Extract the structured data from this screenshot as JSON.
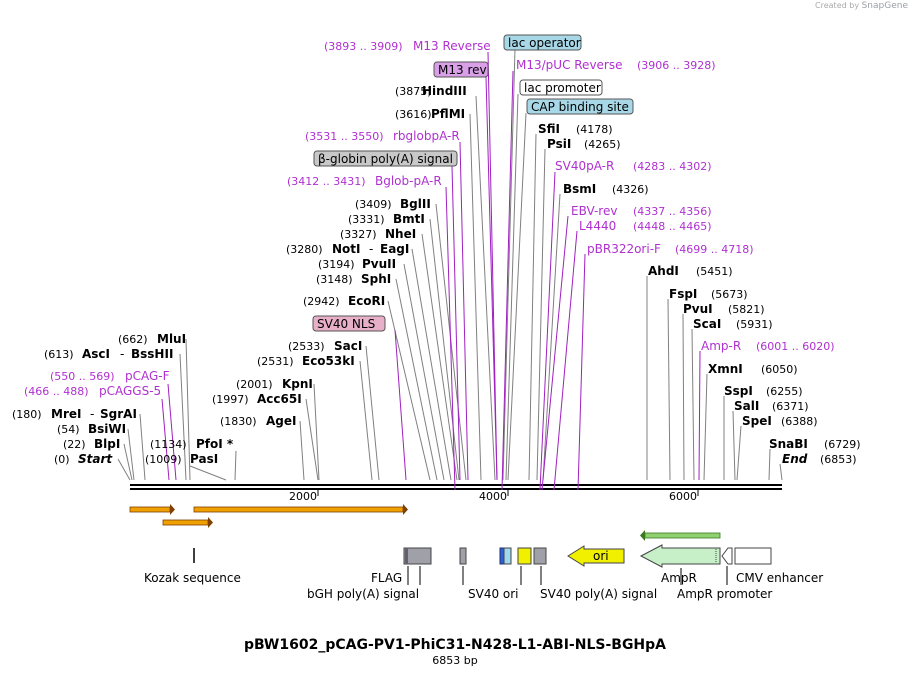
{
  "credit": {
    "prefix": "Created by",
    "brand": "SnapGene"
  },
  "title": "pBW1602_pCAG-PV1-PhiC31-N428-L1-ABI-NLS-BGHpA",
  "length_label": "6853 bp",
  "ruler_ticks": [
    "2000",
    "4000",
    "6000"
  ],
  "colors": {
    "enzyme": "#000000",
    "primer": "#b030d0",
    "feature_label": "#000000"
  },
  "sites_left": [
    {
      "name": "M13 Reverse",
      "range": "(3893 .. 3909)",
      "kind": "primer"
    },
    {
      "name": "M13 rev",
      "kind": "box",
      "fill": "#d9a0e8"
    },
    {
      "name": "HindIII",
      "pos": "(3875)",
      "kind": "enzyme"
    },
    {
      "name": "PflMI",
      "pos": "(3616)",
      "kind": "enzyme"
    },
    {
      "name": "rbglobpA-R",
      "range": "(3531 .. 3550)",
      "kind": "primer"
    },
    {
      "name": "β-globin poly(A) signal",
      "kind": "box",
      "fill": "#c8c8c8"
    },
    {
      "name": "Bglob-pA-R",
      "range": "(3412 .. 3431)",
      "kind": "primer"
    },
    {
      "name": "BglII",
      "pos": "(3409)",
      "kind": "enzyme"
    },
    {
      "name": "BmtI",
      "pos": "(3331)",
      "kind": "enzyme"
    },
    {
      "name": "NheI",
      "pos": "(3327)",
      "kind": "enzyme"
    },
    {
      "name": "NotI",
      "extra": "EagI",
      "pos": "(3280)",
      "kind": "enzyme"
    },
    {
      "name": "PvuII",
      "pos": "(3194)",
      "kind": "enzyme"
    },
    {
      "name": "SphI",
      "pos": "(3148)",
      "kind": "enzyme"
    },
    {
      "name": "EcoRI",
      "pos": "(2942)",
      "kind": "enzyme"
    },
    {
      "name": "SV40 NLS",
      "kind": "box",
      "fill": "#e8b0c8"
    },
    {
      "name": "SacI",
      "pos": "(2533)",
      "kind": "enzyme"
    },
    {
      "name": "Eco53kI",
      "pos": "(2531)",
      "kind": "enzyme"
    },
    {
      "name": "MluI",
      "pos": "(662)",
      "kind": "enzyme"
    },
    {
      "name": "AscI",
      "extra": "BssHII",
      "pos": "(613)",
      "kind": "enzyme"
    },
    {
      "name": "KpnI",
      "pos": "(2001)",
      "kind": "enzyme"
    },
    {
      "name": "pCAG-F",
      "range": "(550 .. 569)",
      "kind": "primer"
    },
    {
      "name": "pCAGGS-5",
      "range": "(466 .. 488)",
      "kind": "primer"
    },
    {
      "name": "Acc65I",
      "pos": "(1997)",
      "kind": "enzyme"
    },
    {
      "name": "MreI",
      "extra": "SgrAI",
      "pos": "(180)",
      "kind": "enzyme"
    },
    {
      "name": "AgeI",
      "pos": "(1830)",
      "kind": "enzyme"
    },
    {
      "name": "BsiWI",
      "pos": "(54)",
      "kind": "enzyme"
    },
    {
      "name": "BlpI",
      "pos": "(22)",
      "kind": "enzyme"
    },
    {
      "name": "PfoI *",
      "pos": "(1134)",
      "kind": "enzyme"
    },
    {
      "name": "Start",
      "pos": "(0)",
      "kind": "end"
    },
    {
      "name": "PasI",
      "pos": "(1009)",
      "kind": "enzyme"
    }
  ],
  "sites_right": [
    {
      "name": "lac operator",
      "kind": "box",
      "fill": "#a8d8e8"
    },
    {
      "name": "M13/pUC Reverse",
      "range": "(3906 .. 3928)",
      "kind": "primer"
    },
    {
      "name": "lac promoter",
      "kind": "box",
      "fill": "#ffffff"
    },
    {
      "name": "CAP binding site",
      "kind": "box",
      "fill": "#a8d8e8"
    },
    {
      "name": "SfiI",
      "pos": "(4178)",
      "kind": "enzyme"
    },
    {
      "name": "PsiI",
      "pos": "(4265)",
      "kind": "enzyme"
    },
    {
      "name": "SV40pA-R",
      "range": "(4283 .. 4302)",
      "kind": "primer"
    },
    {
      "name": "BsmI",
      "pos": "(4326)",
      "kind": "enzyme"
    },
    {
      "name": "EBV-rev",
      "range": "(4337 .. 4356)",
      "kind": "primer"
    },
    {
      "name": "L4440",
      "range": "(4448 .. 4465)",
      "kind": "primer"
    },
    {
      "name": "pBR322ori-F",
      "range": "(4699 .. 4718)",
      "kind": "primer"
    },
    {
      "name": "AhdI",
      "pos": "(5451)",
      "kind": "enzyme"
    },
    {
      "name": "FspI",
      "pos": "(5673)",
      "kind": "enzyme"
    },
    {
      "name": "PvuI",
      "pos": "(5821)",
      "kind": "enzyme"
    },
    {
      "name": "ScaI",
      "pos": "(5931)",
      "kind": "enzyme"
    },
    {
      "name": "Amp-R",
      "range": "(6001 .. 6020)",
      "kind": "primer"
    },
    {
      "name": "XmnI",
      "pos": "(6050)",
      "kind": "enzyme"
    },
    {
      "name": "SspI",
      "pos": "(6255)",
      "kind": "enzyme"
    },
    {
      "name": "SalI",
      "pos": "(6371)",
      "kind": "enzyme"
    },
    {
      "name": "SpeI",
      "pos": "(6388)",
      "kind": "enzyme"
    },
    {
      "name": "SnaBI",
      "pos": "(6729)",
      "kind": "enzyme"
    },
    {
      "name": "End",
      "pos": "(6853)",
      "kind": "end"
    }
  ],
  "features_below": [
    "Kozak sequence",
    "FLAG",
    "bGH poly(A) signal",
    "SV40 ori",
    "SV40 poly(A) signal",
    "AmpR",
    "AmpR promoter",
    "CMV enhancer"
  ],
  "feature_glyphs": {
    "ori": "ori"
  }
}
